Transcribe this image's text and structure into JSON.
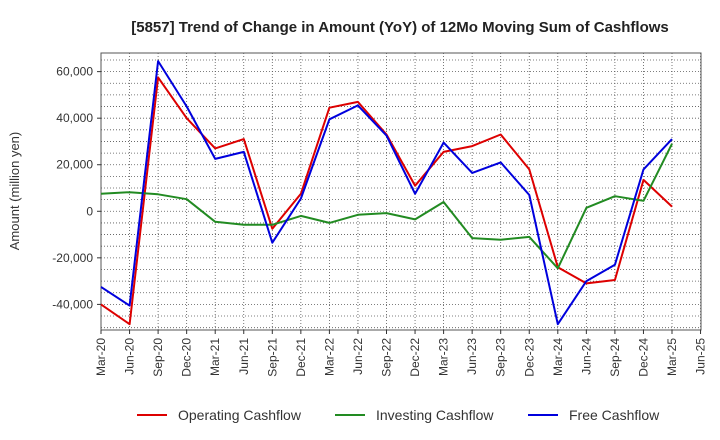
{
  "chart_data": {
    "type": "line",
    "title": "[5857]  Trend of Change in Amount (YoY) of 12Mo Moving Sum of Cashflows",
    "xlabel": "",
    "ylabel": "Amount (million yen)",
    "ylim": [
      -51000,
      68000
    ],
    "yticks": [
      -40000,
      -20000,
      0,
      20000,
      40000,
      60000
    ],
    "ytick_labels": [
      "-40,000",
      "-20,000",
      "0",
      "20,000",
      "40,000",
      "60,000"
    ],
    "categories": [
      "Mar-20",
      "Jun-20",
      "Sep-20",
      "Dec-20",
      "Mar-21",
      "Jun-21",
      "Sep-21",
      "Dec-21",
      "Mar-22",
      "Jun-22",
      "Sep-22",
      "Dec-22",
      "Mar-23",
      "Jun-23",
      "Sep-23",
      "Dec-23",
      "Mar-24",
      "Jun-24",
      "Sep-24",
      "Dec-24",
      "Mar-25",
      "Jun-25"
    ],
    "grid": true,
    "legend_position": "bottom",
    "series": [
      {
        "name": "Operating Cashflow",
        "color": "#dd0000",
        "values": [
          -40000,
          -48500,
          57500,
          40000,
          27000,
          31000,
          -7500,
          7500,
          44500,
          47000,
          33000,
          11000,
          25500,
          28000,
          33000,
          18000,
          -24000,
          -31000,
          -29500,
          13500,
          2000,
          null
        ]
      },
      {
        "name": "Investing Cashflow",
        "color": "#228b22",
        "values": [
          7500,
          8200,
          7300,
          5200,
          -4500,
          -5800,
          -5800,
          -2000,
          -5000,
          -1500,
          -800,
          -3500,
          4000,
          -11500,
          -12200,
          -11000,
          -24500,
          1500,
          6500,
          4500,
          29000,
          null
        ]
      },
      {
        "name": "Free Cashflow",
        "color": "#0000dd",
        "values": [
          -32500,
          -40500,
          64500,
          45000,
          22500,
          25500,
          -13500,
          5500,
          39500,
          45500,
          32500,
          7500,
          29500,
          16500,
          21000,
          7000,
          -48500,
          -30000,
          -23000,
          18000,
          31000,
          null
        ]
      }
    ]
  }
}
